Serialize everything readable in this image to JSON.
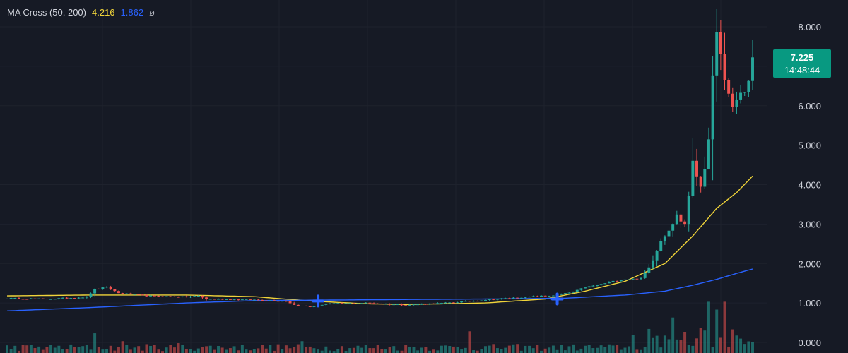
{
  "legend": {
    "indicator": "MA Cross (50, 200)",
    "ma50_value": "4.216",
    "ma200_value": "1.862",
    "symbol": "ø"
  },
  "price_tag": {
    "price": "7.225",
    "countdown": "14:48:44"
  },
  "colors": {
    "background": "#161a25",
    "up": "#26a69a",
    "down": "#ef5350",
    "ma50": "#f0d43a",
    "ma200": "#2962ff",
    "cross": "#2962ff",
    "grid": "#1e222d"
  },
  "chart_data": {
    "type": "candlestick",
    "y_axis": {
      "ticks": [
        "8.000",
        "7.000",
        "6.000",
        "5.000",
        "4.000",
        "3.000",
        "2.000",
        "1.000",
        "0.000"
      ],
      "ylim": [
        0,
        8.8
      ],
      "position": "right"
    },
    "grid": true,
    "candle_count": 188,
    "close_anchors": [
      [
        0,
        1.12
      ],
      [
        10,
        1.1
      ],
      [
        20,
        1.15
      ],
      [
        22,
        1.35
      ],
      [
        25,
        1.4
      ],
      [
        28,
        1.25
      ],
      [
        35,
        1.18
      ],
      [
        45,
        1.15
      ],
      [
        48,
        1.18
      ],
      [
        50,
        1.1
      ],
      [
        62,
        1.08
      ],
      [
        70,
        1.05
      ],
      [
        72,
        0.95
      ],
      [
        76,
        0.9
      ],
      [
        80,
        0.98
      ],
      [
        90,
        1.0
      ],
      [
        100,
        0.95
      ],
      [
        110,
        1.0
      ],
      [
        120,
        1.08
      ],
      [
        130,
        1.15
      ],
      [
        138,
        1.2
      ],
      [
        142,
        1.28
      ],
      [
        145,
        1.4
      ],
      [
        148,
        1.45
      ],
      [
        152,
        1.55
      ],
      [
        155,
        1.6
      ],
      [
        159,
        1.62
      ],
      [
        161,
        1.9
      ],
      [
        164,
        2.6
      ],
      [
        168,
        3.2
      ],
      [
        170,
        3.0
      ],
      [
        172,
        4.5
      ],
      [
        174,
        4.0
      ],
      [
        176,
        5.0
      ],
      [
        177,
        6.6
      ],
      [
        178,
        8.1
      ],
      [
        179,
        7.2
      ],
      [
        180,
        6.5
      ],
      [
        182,
        6.0
      ],
      [
        184,
        6.3
      ],
      [
        186,
        6.6
      ],
      [
        187,
        7.225
      ]
    ],
    "series": [
      {
        "name": "50",
        "value_last": 4.216,
        "points": [
          [
            0,
            1.18
          ],
          [
            20,
            1.2
          ],
          [
            45,
            1.2
          ],
          [
            62,
            1.16
          ],
          [
            76,
            1.05
          ],
          [
            90,
            0.98
          ],
          [
            100,
            0.96
          ],
          [
            120,
            1.0
          ],
          [
            135,
            1.1
          ],
          [
            145,
            1.3
          ],
          [
            155,
            1.55
          ],
          [
            165,
            2.0
          ],
          [
            172,
            2.7
          ],
          [
            178,
            3.4
          ],
          [
            183,
            3.8
          ],
          [
            187,
            4.216
          ]
        ]
      },
      {
        "name": "200",
        "value_last": 1.862,
        "points": [
          [
            0,
            0.8
          ],
          [
            20,
            0.88
          ],
          [
            45,
            1.0
          ],
          [
            62,
            1.06
          ],
          [
            90,
            1.08
          ],
          [
            120,
            1.1
          ],
          [
            140,
            1.12
          ],
          [
            155,
            1.2
          ],
          [
            165,
            1.3
          ],
          [
            172,
            1.45
          ],
          [
            178,
            1.6
          ],
          [
            183,
            1.75
          ],
          [
            187,
            1.862
          ]
        ]
      }
    ],
    "cross_markers": [
      [
        78,
        1.05
      ],
      [
        138,
        1.1
      ]
    ],
    "volume_spikes": [
      [
        22,
        0.5
      ],
      [
        29,
        0.3
      ],
      [
        43,
        0.25
      ],
      [
        74,
        0.3
      ],
      [
        116,
        0.55
      ],
      [
        157,
        0.45
      ],
      [
        167,
        0.9
      ],
      [
        176,
        1.3
      ],
      [
        178,
        1.1
      ],
      [
        180,
        1.3
      ]
    ]
  }
}
